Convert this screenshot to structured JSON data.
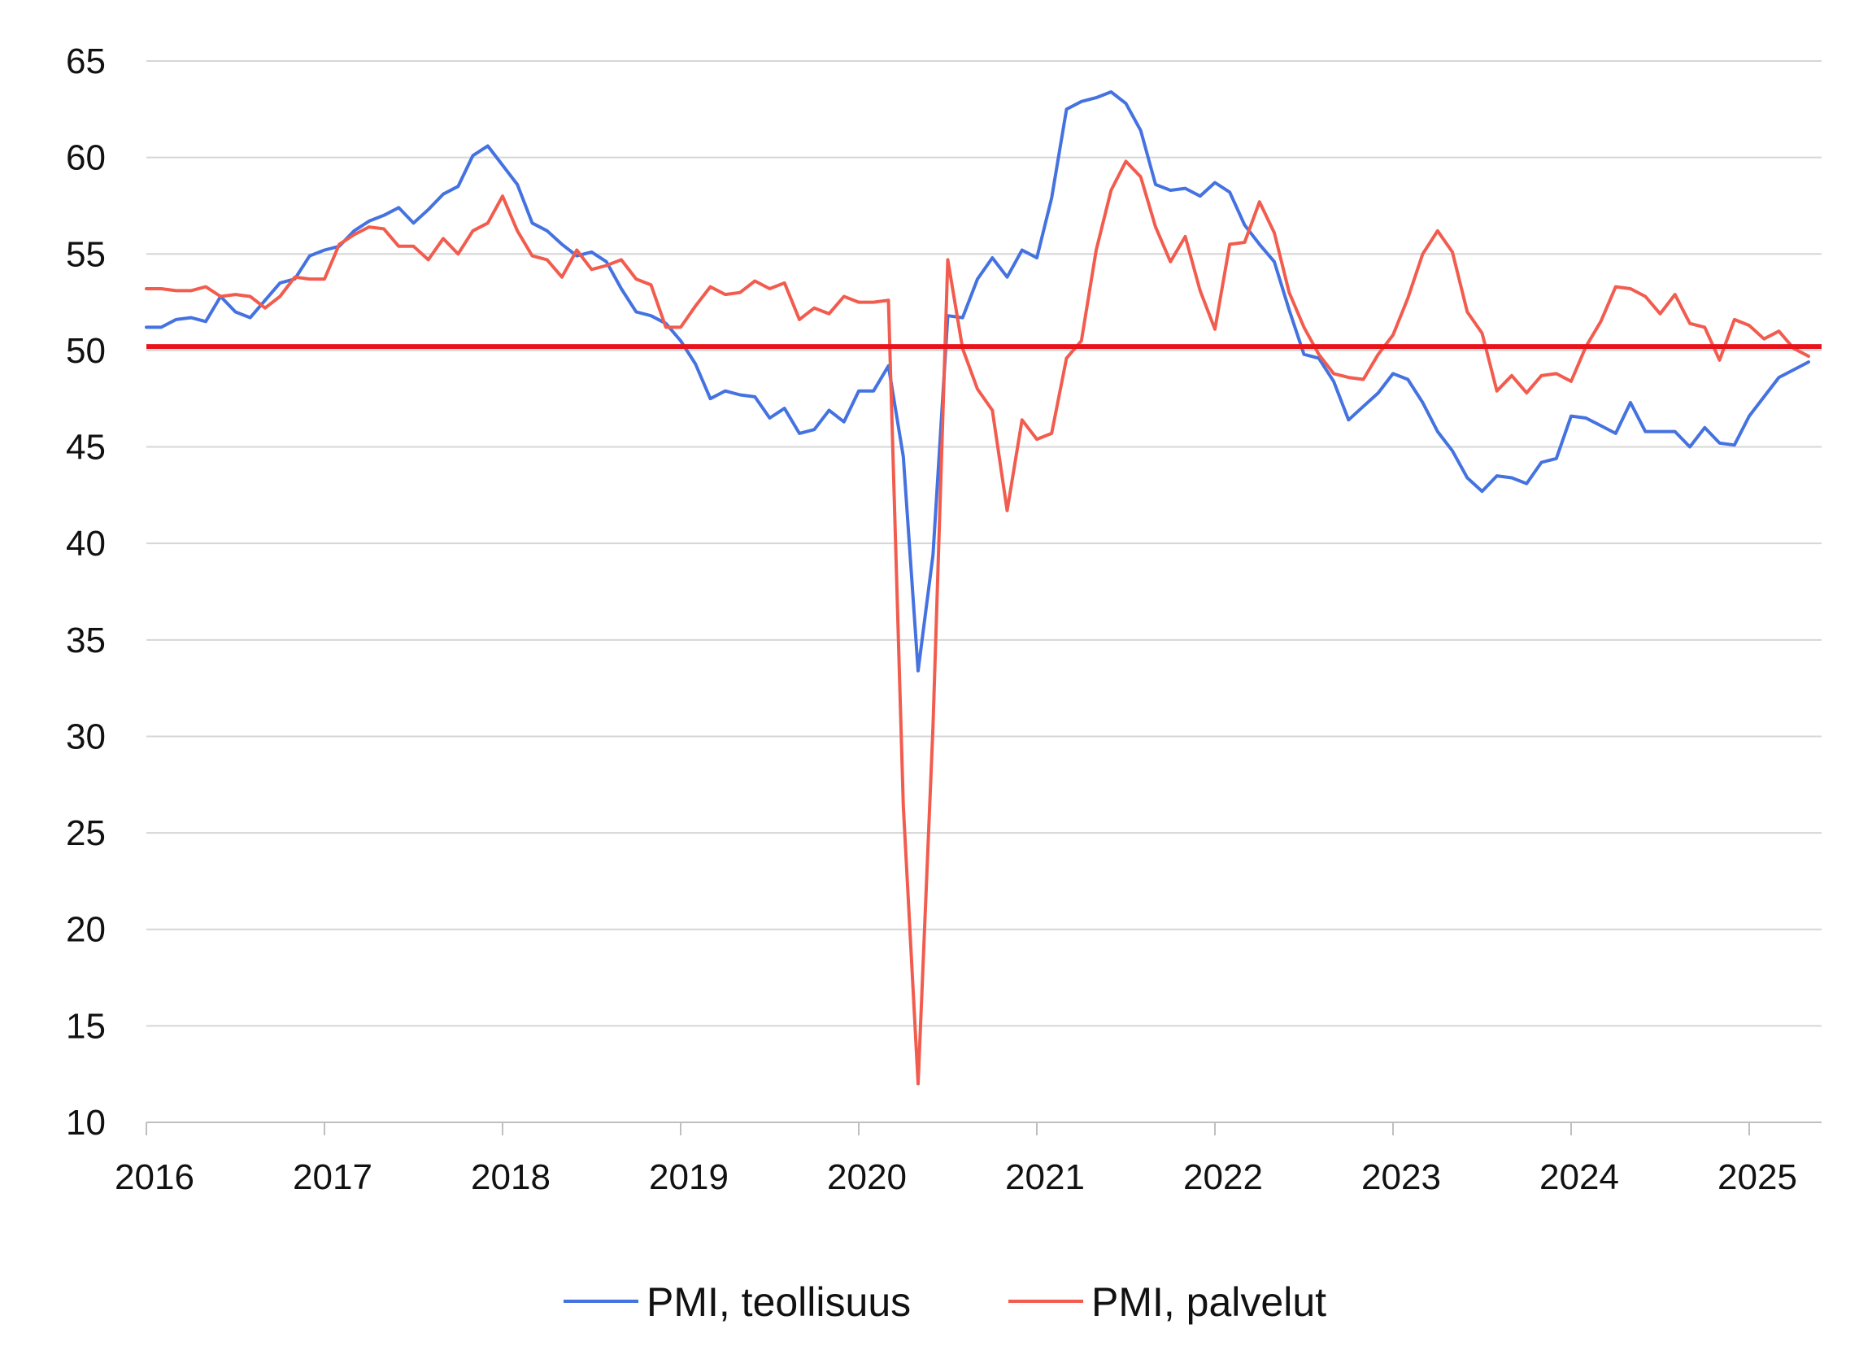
{
  "chart_data": {
    "type": "line",
    "title": "",
    "xlabel": "",
    "ylabel": "",
    "ylim": [
      10,
      65
    ],
    "yticks": [
      10,
      15,
      20,
      25,
      30,
      35,
      40,
      45,
      50,
      55,
      60,
      65
    ],
    "ytick_labels": [
      "10",
      "15",
      "20",
      "25",
      "30",
      "35",
      "40",
      "45",
      "50",
      "55",
      "60",
      "65"
    ],
    "xlim": [
      2016.0,
      2025.417
    ],
    "xticks": [
      2016,
      2017,
      2018,
      2019,
      2020,
      2021,
      2022,
      2023,
      2024,
      2025
    ],
    "xtick_labels": [
      "2016",
      "2017",
      "2018",
      "2019",
      "2020",
      "2021",
      "2022",
      "2023",
      "2024",
      "2025"
    ],
    "grid": true,
    "legend_position": "bottom-center",
    "reference_line": {
      "value": 50.2,
      "color": "#e8141c"
    },
    "series": [
      {
        "name": "PMI, teollisuus",
        "color": "#4472e0",
        "start_year": 2016,
        "values": [
          51.2,
          51.2,
          51.6,
          51.7,
          51.5,
          52.8,
          52.0,
          51.7,
          52.6,
          53.5,
          53.7,
          54.9,
          55.2,
          55.4,
          56.2,
          56.7,
          57.0,
          57.4,
          56.6,
          57.3,
          58.1,
          58.5,
          60.1,
          60.6,
          59.6,
          58.6,
          56.6,
          56.2,
          55.5,
          54.9,
          55.1,
          54.6,
          53.2,
          52.0,
          51.8,
          51.4,
          50.5,
          49.3,
          47.5,
          47.9,
          47.7,
          47.6,
          46.5,
          47.0,
          45.7,
          45.9,
          46.9,
          46.3,
          47.9,
          47.9,
          49.2,
          44.5,
          33.4,
          39.4,
          51.8,
          51.7,
          53.7,
          54.8,
          53.8,
          55.2,
          54.8,
          57.9,
          62.5,
          62.9,
          63.1,
          63.4,
          62.8,
          61.4,
          58.6,
          58.3,
          58.4,
          58.0,
          58.7,
          58.2,
          56.5,
          55.5,
          54.6,
          52.1,
          49.8,
          49.6,
          48.4,
          46.4,
          47.1,
          47.8,
          48.8,
          48.5,
          47.3,
          45.8,
          44.8,
          43.4,
          42.7,
          43.5,
          43.4,
          43.1,
          44.2,
          44.4,
          46.6,
          46.5,
          46.1,
          45.7,
          47.3,
          45.8,
          45.8,
          45.8,
          45.0,
          46.0,
          45.2,
          45.1,
          46.6,
          47.6,
          48.6,
          49.0,
          49.4
        ]
      },
      {
        "name": "PMI, palvelut",
        "color": "#f25c4e",
        "start_year": 2016,
        "values": [
          53.2,
          53.2,
          53.1,
          53.1,
          53.3,
          52.8,
          52.9,
          52.8,
          52.2,
          52.8,
          53.8,
          53.7,
          53.7,
          55.5,
          56.0,
          56.4,
          56.3,
          55.4,
          55.4,
          54.7,
          55.8,
          55.0,
          56.2,
          56.6,
          58.0,
          56.2,
          54.9,
          54.7,
          53.8,
          55.2,
          54.2,
          54.4,
          54.7,
          53.7,
          53.4,
          51.2,
          51.2,
          52.3,
          53.3,
          52.9,
          53.0,
          53.6,
          53.2,
          53.5,
          51.6,
          52.2,
          51.9,
          52.8,
          52.5,
          52.5,
          52.6,
          26.4,
          12.0,
          30.5,
          54.7,
          50.1,
          48.0,
          46.9,
          41.7,
          46.4,
          45.4,
          45.7,
          49.6,
          50.5,
          55.2,
          58.3,
          59.8,
          59.0,
          56.4,
          54.6,
          55.9,
          53.1,
          51.1,
          55.5,
          55.6,
          57.7,
          56.1,
          53.0,
          51.2,
          49.8,
          48.8,
          48.6,
          48.5,
          49.8,
          50.8,
          52.7,
          55.0,
          56.2,
          55.1,
          52.0,
          50.9,
          47.9,
          48.7,
          47.8,
          48.7,
          48.8,
          48.4,
          50.2,
          51.5,
          53.3,
          53.2,
          52.8,
          51.9,
          52.9,
          51.4,
          51.2,
          49.5,
          51.6,
          51.3,
          50.6,
          51.0,
          50.1,
          49.7
        ]
      }
    ]
  }
}
